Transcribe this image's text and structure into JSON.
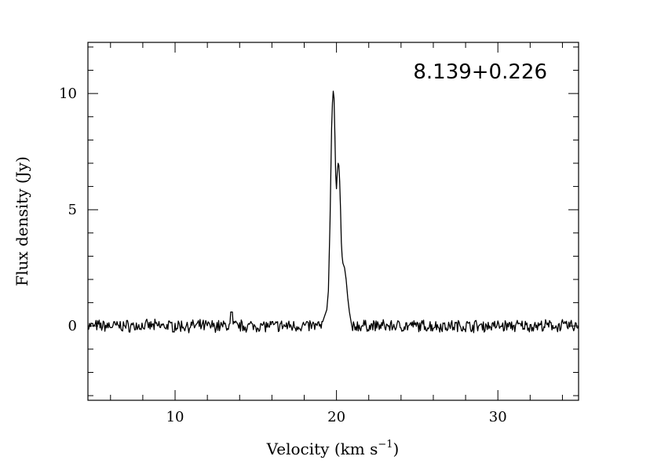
{
  "chart_data": {
    "type": "line",
    "title": "",
    "annotation": "8.139+0.226",
    "xlabel": "Velocity (km s",
    "xlabel_superscript": "−1",
    "xlabel_close": ")",
    "ylabel": "Flux density (Jy)",
    "xlim": [
      4.6,
      35
    ],
    "ylim": [
      -3.2,
      12.2
    ],
    "x_ticks": [
      10,
      20,
      30
    ],
    "x_tick_labels": [
      "10",
      "20",
      "30"
    ],
    "y_ticks": [
      0,
      5,
      10
    ],
    "y_tick_labels": [
      "0",
      "5",
      "10"
    ],
    "x_minor_step": 2,
    "y_minor_step": 1,
    "grid": false,
    "series": [
      {
        "values_description_only": false,
        "x": [
          19.2,
          19.4,
          19.5,
          19.6,
          19.7,
          19.75,
          19.8,
          19.85,
          19.9,
          19.95,
          20.0,
          20.05,
          20.1,
          20.15,
          20.2,
          20.25,
          20.3,
          20.35,
          20.4,
          20.5,
          20.6,
          20.7,
          20.8,
          20.9,
          21.0
        ],
        "y": [
          0.3,
          0.7,
          1.5,
          4.5,
          8.5,
          9.6,
          10.1,
          9.8,
          8.2,
          6.5,
          5.9,
          6.6,
          7.0,
          6.9,
          6.2,
          5.0,
          3.6,
          3.0,
          2.7,
          2.5,
          2.0,
          1.2,
          0.6,
          0.2,
          -0.2
        ]
      }
    ]
  }
}
